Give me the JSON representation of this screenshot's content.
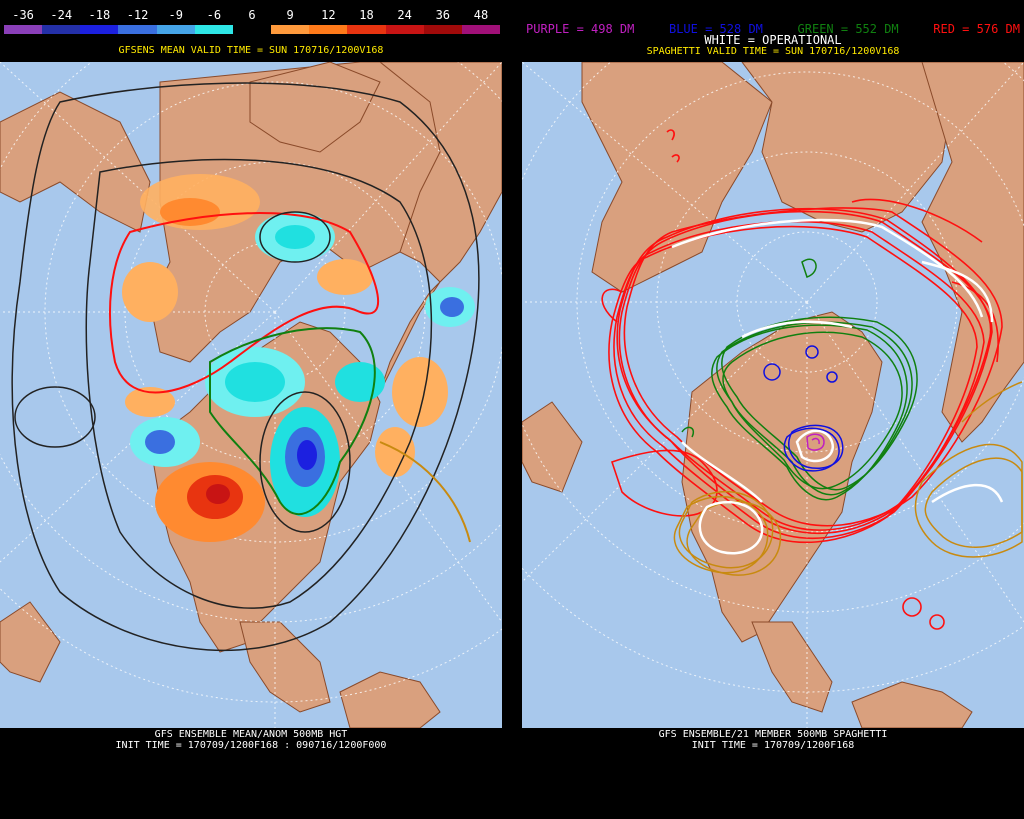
{
  "left": {
    "legend_ticks": [
      "-36",
      "-24",
      "-18",
      "-12",
      "-9",
      "-6",
      "6",
      "9",
      "12",
      "18",
      "24",
      "36",
      "48"
    ],
    "legend_colors": [
      "#8a3fb8",
      "#2430a8",
      "#1c20e0",
      "#3a6fe0",
      "#45a4e8",
      "#2ee6e6",
      "#000000",
      "#ff9a3c",
      "#ff7a1a",
      "#e83410",
      "#c81414",
      "#a00a0a",
      "#a01078"
    ],
    "valid_text": "GFSENS MEAN VALID TIME = SUN 170716/1200V168",
    "bottom_title": "GFS ENSEMBLE MEAN/ANOM 500MB HGT",
    "bottom_init": "INIT TIME = 170709/1200F168 : 090716/1200F000"
  },
  "right": {
    "legend_purple": "PURPLE = 498 DM",
    "legend_blue": "BLUE = 528 DM",
    "legend_green": "GREEN = 552 DM",
    "legend_red": "RED = 576 DM",
    "white_op": "WHITE = OPERATIONAL",
    "valid_text": "SPAGHETTI VALID TIME = SUN 170716/1200V168",
    "bottom_title": "GFS ENSEMBLE/21 MEMBER 500MB SPAGHETTI",
    "bottom_init": "INIT TIME = 170709/1200F168"
  },
  "colors": {
    "ocean": "#a8c8ec",
    "land": "#d9a07e",
    "coast": "#8a4a2a",
    "purple": "#c020c0",
    "blue": "#1010e0",
    "green": "#108010",
    "red": "#ff1010",
    "gold": "#c88a10",
    "white": "#ffffff"
  }
}
